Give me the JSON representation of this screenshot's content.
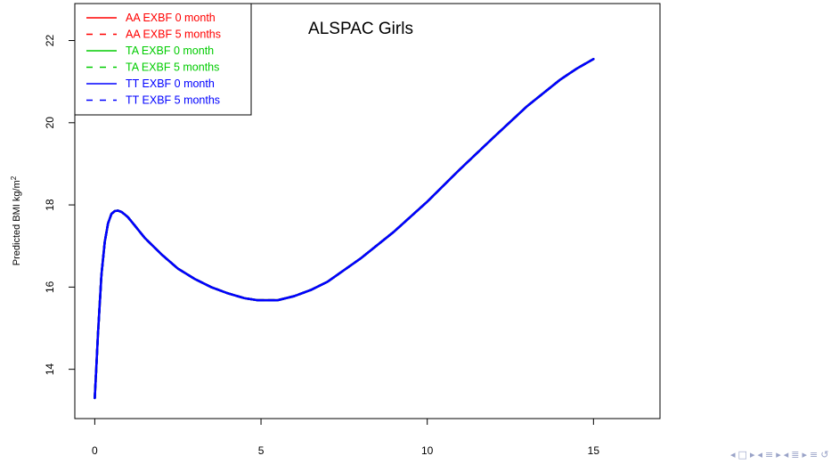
{
  "chart_data": {
    "type": "line",
    "title": "ALSPAC Girls",
    "xlabel": "",
    "ylabel": "Predicted BMI kg/m",
    "ylabel_superscript": "2",
    "xlim": [
      -0.6,
      17
    ],
    "ylim": [
      12.8,
      22.9
    ],
    "xticks": [
      0,
      5,
      10,
      15
    ],
    "yticks": [
      14,
      16,
      18,
      20,
      22
    ],
    "grid": false,
    "legend_position": "top-left",
    "x": [
      0,
      0.1,
      0.2,
      0.3,
      0.4,
      0.5,
      0.6,
      0.7,
      0.8,
      0.9,
      1.0,
      1.2,
      1.5,
      2.0,
      2.5,
      3.0,
      3.5,
      4.0,
      4.5,
      4.9,
      5.5,
      6.0,
      6.5,
      7.0,
      8.0,
      9.0,
      10.0,
      11.0,
      12.0,
      13.0,
      14.0,
      14.5,
      15.0
    ],
    "series": [
      {
        "name": "AA EXBF 0 month",
        "color": "#ff0000",
        "dash": "solid",
        "values": [
          13.3,
          14.9,
          16.3,
          17.1,
          17.55,
          17.78,
          17.85,
          17.86,
          17.83,
          17.77,
          17.7,
          17.5,
          17.2,
          16.8,
          16.45,
          16.2,
          16.0,
          15.85,
          15.73,
          15.68,
          15.68,
          15.78,
          15.93,
          16.13,
          16.7,
          17.35,
          18.08,
          18.88,
          19.65,
          20.4,
          21.05,
          21.32,
          21.55
        ]
      },
      {
        "name": "AA EXBF 5 months",
        "color": "#ff0000",
        "dash": "dashed",
        "values": [
          13.3,
          14.9,
          16.3,
          17.1,
          17.55,
          17.78,
          17.85,
          17.86,
          17.83,
          17.77,
          17.7,
          17.5,
          17.2,
          16.8,
          16.45,
          16.2,
          16.0,
          15.85,
          15.73,
          15.68,
          15.68,
          15.78,
          15.93,
          16.13,
          16.7,
          17.35,
          18.08,
          18.88,
          19.65,
          20.4,
          21.05,
          21.32,
          21.55
        ]
      },
      {
        "name": "TA EXBF 0 month",
        "color": "#00cc00",
        "dash": "solid",
        "values": [
          13.3,
          14.9,
          16.3,
          17.1,
          17.55,
          17.78,
          17.85,
          17.86,
          17.83,
          17.77,
          17.7,
          17.5,
          17.2,
          16.8,
          16.45,
          16.2,
          16.0,
          15.85,
          15.73,
          15.68,
          15.68,
          15.78,
          15.93,
          16.13,
          16.7,
          17.35,
          18.08,
          18.88,
          19.65,
          20.4,
          21.05,
          21.32,
          21.55
        ]
      },
      {
        "name": "TA EXBF 5 months",
        "color": "#00cc00",
        "dash": "dashed",
        "values": [
          13.3,
          14.9,
          16.3,
          17.1,
          17.55,
          17.78,
          17.85,
          17.86,
          17.83,
          17.77,
          17.7,
          17.5,
          17.2,
          16.8,
          16.45,
          16.2,
          16.0,
          15.85,
          15.73,
          15.68,
          15.68,
          15.78,
          15.93,
          16.13,
          16.7,
          17.35,
          18.08,
          18.88,
          19.65,
          20.4,
          21.05,
          21.32,
          21.55
        ]
      },
      {
        "name": "TT EXBF 0 month",
        "color": "#0000ff",
        "dash": "solid",
        "values": [
          13.3,
          14.9,
          16.3,
          17.1,
          17.55,
          17.78,
          17.85,
          17.86,
          17.83,
          17.77,
          17.7,
          17.5,
          17.2,
          16.8,
          16.45,
          16.2,
          16.0,
          15.85,
          15.73,
          15.68,
          15.68,
          15.78,
          15.93,
          16.13,
          16.7,
          17.35,
          18.08,
          18.88,
          19.65,
          20.4,
          21.05,
          21.32,
          21.55
        ]
      },
      {
        "name": "TT EXBF 5 months",
        "color": "#0000ff",
        "dash": "dashed",
        "values": [
          13.3,
          14.9,
          16.3,
          17.1,
          17.55,
          17.78,
          17.85,
          17.86,
          17.83,
          17.77,
          17.7,
          17.5,
          17.2,
          16.8,
          16.45,
          16.2,
          16.0,
          15.85,
          15.73,
          15.68,
          15.68,
          15.78,
          15.93,
          16.13,
          16.7,
          17.35,
          18.08,
          18.88,
          19.65,
          20.4,
          21.05,
          21.32,
          21.55
        ]
      }
    ]
  },
  "nav": {
    "icons": [
      "triangle-left-icon",
      "frame-icon",
      "triangle-right-icon",
      "triangle-left-icon",
      "subsection-icon",
      "triangle-right-icon",
      "triangle-left-icon",
      "section-icon",
      "triangle-right-icon",
      "align-icon",
      "zoom-icon"
    ],
    "color": "#9aa3c8"
  }
}
